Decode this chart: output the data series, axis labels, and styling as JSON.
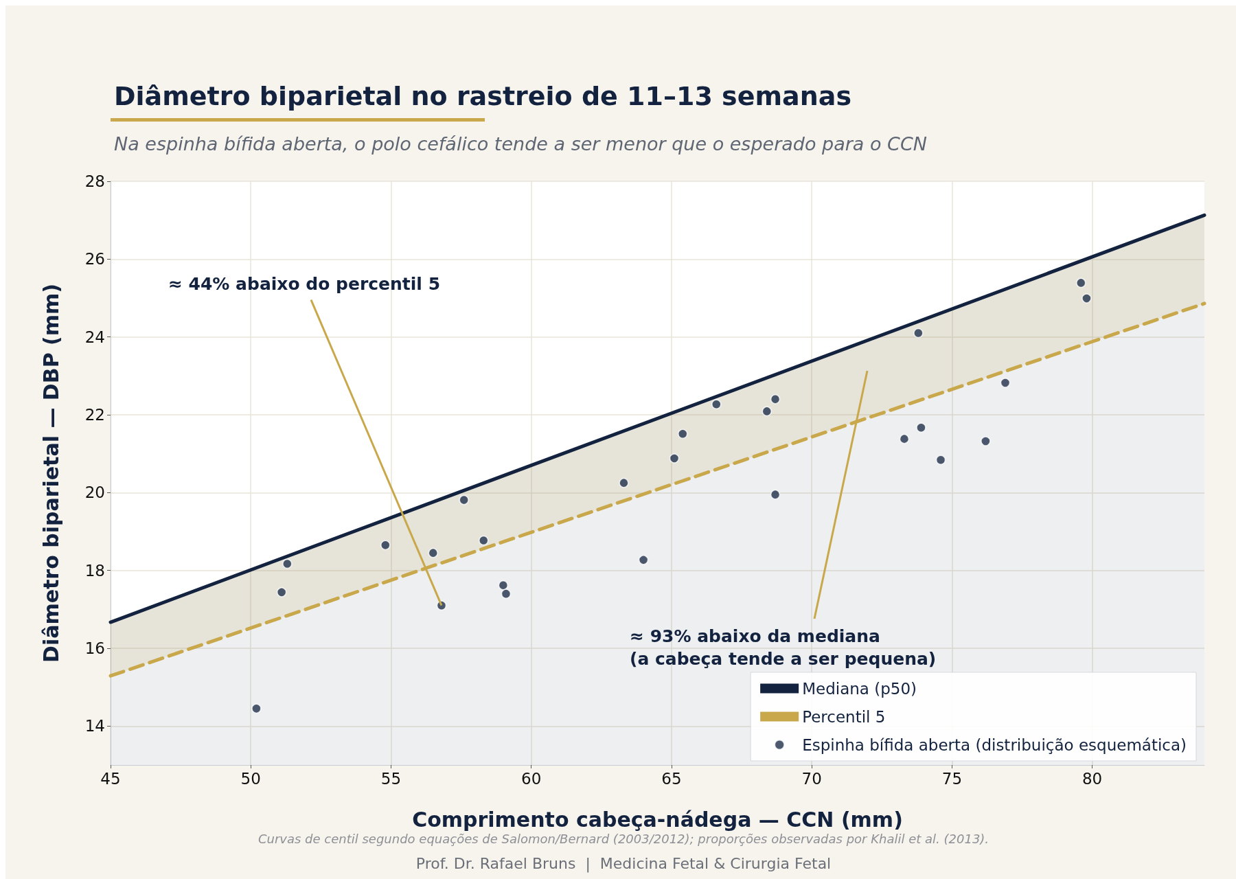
{
  "chart_data": {
    "type": "scatter",
    "title": "Diâmetro biparietal no rastreio de 11–13 semanas",
    "subtitle": "Na espinha bífida aberta, o polo cefálico tende a ser menor que o esperado para o CCN",
    "xlabel": "Comprimento cabeça-nádega — CCN (mm)",
    "ylabel": "Diâmetro biparietal — DBP (mm)",
    "xlim": [
      45,
      84
    ],
    "xticks": [
      45,
      50,
      55,
      60,
      65,
      70,
      75,
      80
    ],
    "ylim": [
      13,
      28
    ],
    "yticks": [
      14,
      16,
      18,
      20,
      22,
      24,
      26,
      28
    ],
    "grid": true,
    "legend": "bottom right",
    "series": [
      {
        "name": "Mediana (p50)",
        "type": "area",
        "color": "#13233f",
        "line_style": "solid",
        "marker": "none",
        "x": [
          45,
          60,
          84
        ],
        "values": [
          16.67,
          20.7,
          27.13
        ]
      },
      {
        "name": "Percentil 5",
        "type": "line",
        "color": "#c9a84c",
        "line_style": "dashed",
        "marker": "none",
        "x": [
          45,
          60,
          84
        ],
        "values": [
          15.29,
          18.98,
          24.86
        ],
        "lower": [
          15.29,
          18.98,
          24.86
        ],
        "upper": [
          16.67,
          20.7,
          27.13
        ]
      },
      {
        "name": "Espinha bífida aberta (distribuição esquemática)",
        "color": "#1f2f4a",
        "marker": "circle",
        "x": [
          50.2,
          51.1,
          51.3,
          54.8,
          56.5,
          56.8,
          57.6,
          58.3,
          59.0,
          59.1,
          63.3,
          64.0,
          65.1,
          65.4,
          66.6,
          68.4,
          68.7,
          68.7,
          73.3,
          73.8,
          73.9,
          74.6,
          76.2,
          76.9,
          79.6,
          79.8
        ],
        "values": [
          14.45,
          17.44,
          18.17,
          18.65,
          18.45,
          17.1,
          19.81,
          18.77,
          17.62,
          17.4,
          20.25,
          18.27,
          20.88,
          21.51,
          22.27,
          22.09,
          22.4,
          19.95,
          21.38,
          24.1,
          21.67,
          20.84,
          21.32,
          22.82,
          25.39,
          24.99
        ]
      }
    ],
    "annotations": [
      {
        "text": "≈ 44% abaixo do percentil 5",
        "x": 56.8,
        "y": 17.1
      },
      "≈ 93% abaixo da mediana\n(a cabeça tende a ser pequena)",
      "Curvas de centil segundo equações de Salomon/Bernard (2003/2012); proporções observadas por Khalil et al. (2013).",
      "Prof. Dr. Rafael Bruns  |  Medicina Fetal & Cirurgia Fetal"
    ]
  }
}
